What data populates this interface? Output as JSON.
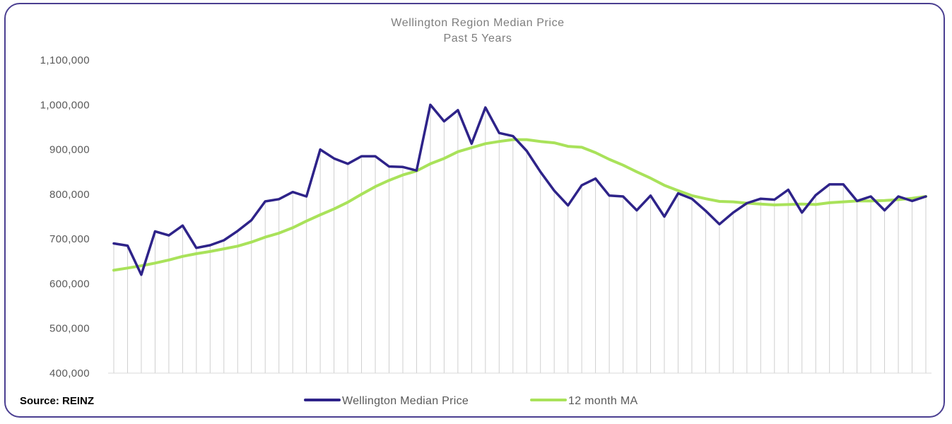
{
  "source_label": "Source: REINZ",
  "colors": {
    "median": "#2e2389",
    "ma": "#a9e25a",
    "frame": "#4b3f91",
    "stripe": "#cfcfcf"
  },
  "chart_data": {
    "type": "line",
    "title": "Wellington Region Median Price",
    "subtitle": "Past 5 Years",
    "xlabel": "",
    "ylabel": "",
    "ylim": [
      400000,
      1100000
    ],
    "yticks": [
      400000,
      500000,
      600000,
      700000,
      800000,
      900000,
      1000000,
      1100000
    ],
    "ytick_labels": [
      "400,000",
      "500,000",
      "600,000",
      "700,000",
      "800,000",
      "900,000",
      "1,000,000",
      "1,100,000"
    ],
    "legend": "bottom",
    "series": [
      {
        "name": "Wellington Median Price",
        "color": "#2e2389",
        "values": [
          690000,
          685000,
          620000,
          717000,
          708000,
          730000,
          680000,
          686000,
          697000,
          718000,
          742000,
          784000,
          789000,
          805000,
          795000,
          900000,
          880000,
          868000,
          885000,
          885000,
          862000,
          861000,
          853000,
          1000000,
          963000,
          988000,
          913000,
          994000,
          937000,
          930000,
          897000,
          850000,
          808000,
          775000,
          820000,
          835000,
          797000,
          795000,
          764000,
          797000,
          750000,
          802000,
          790000,
          763000,
          733000,
          759000,
          780000,
          790000,
          788000,
          810000,
          759000,
          798000,
          822000,
          822000,
          785000,
          795000,
          764000,
          795000,
          785000,
          795000
        ]
      },
      {
        "name": "12 month MA",
        "color": "#a9e25a",
        "values": [
          630000,
          635000,
          640000,
          646000,
          653000,
          661000,
          667000,
          672000,
          678000,
          684000,
          693000,
          704000,
          713000,
          725000,
          740000,
          754000,
          767000,
          782000,
          800000,
          817000,
          831000,
          843000,
          852000,
          868000,
          880000,
          895000,
          904000,
          913000,
          918000,
          922000,
          922000,
          918000,
          915000,
          907000,
          905000,
          893000,
          878000,
          865000,
          850000,
          836000,
          820000,
          808000,
          797000,
          790000,
          784000,
          783000,
          780000,
          778000,
          776000,
          777000,
          778000,
          777000,
          781000,
          783000,
          785000,
          785000,
          786000,
          788000,
          791000,
          795000
        ]
      }
    ]
  }
}
